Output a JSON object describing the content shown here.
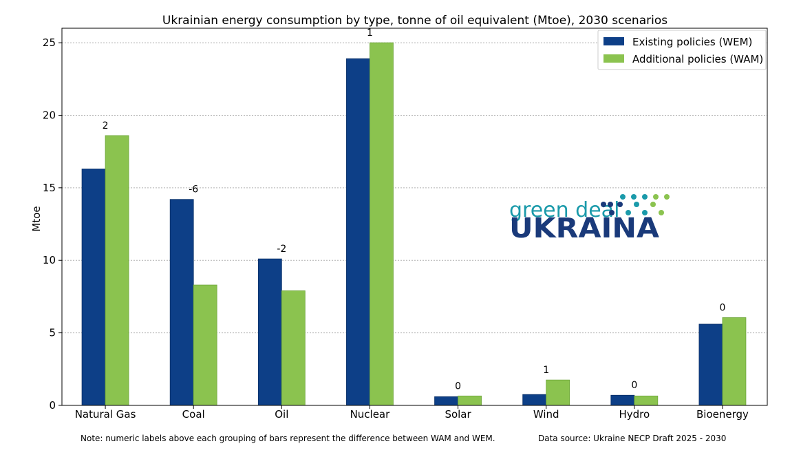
{
  "chart_data": {
    "type": "bar",
    "title": "Ukrainian energy consumption by type, tonne of oil equivalent (Mtoe), 2030 scenarios",
    "xlabel": "",
    "ylabel": "Mtoe",
    "ylim": [
      0,
      26
    ],
    "yticks": [
      0,
      5,
      10,
      15,
      20,
      25
    ],
    "grid": "horizontal-dotted",
    "legend_position": "top-right",
    "categories": [
      "Natural Gas",
      "Coal",
      "Oil",
      "Nuclear",
      "Solar",
      "Wind",
      "Hydro",
      "Bioenergy"
    ],
    "series": [
      {
        "name": "Existing policies (WEM)",
        "color": "#0d3f87",
        "values": [
          16.3,
          14.2,
          10.1,
          23.9,
          0.6,
          0.75,
          0.7,
          5.6
        ]
      },
      {
        "name": "Additional policies (WAM)",
        "color": "#8bc34f",
        "values": [
          18.6,
          8.3,
          7.9,
          25.0,
          0.65,
          1.75,
          0.65,
          6.05
        ]
      }
    ],
    "difference_labels": [
      "2",
      "-6",
      "-2",
      "1",
      "0",
      "1",
      "0",
      "0"
    ]
  },
  "footer": {
    "note": "Note: numeric labels above each grouping of bars represent the difference between WAM and WEM.",
    "source": "Data source: Ukraine NECP Draft 2025 - 2030"
  },
  "logo": {
    "line1": "green deal",
    "line2": "UKRAINA",
    "color_dark": "#1a3a7a",
    "color_teal": "#1a9aaa",
    "color_green": "#8bc34f"
  }
}
